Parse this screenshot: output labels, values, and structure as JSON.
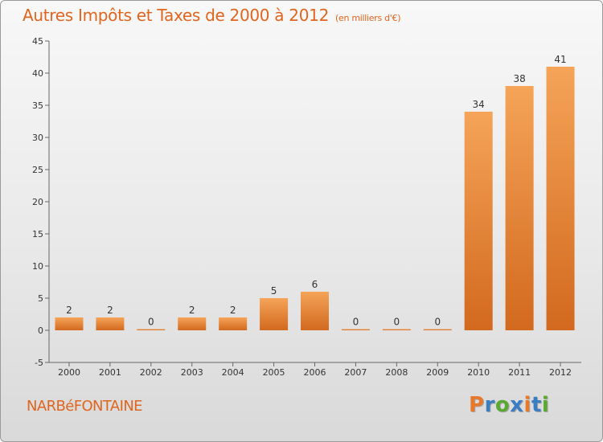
{
  "header": {
    "title": "Autres Impôts et Taxes de 2000 à 2012",
    "subtitle": "(en milliers d'€)"
  },
  "footer": {
    "commune": "NARBéFONTAINE",
    "logo": {
      "letters": [
        "P",
        "r",
        "o",
        "x",
        "i",
        "t",
        "i"
      ],
      "colors": [
        "#e8782a",
        "#3a7dc2",
        "#5aaa32",
        "#3a7dc2",
        "#e8782a",
        "#3a7dc2",
        "#5aaa32"
      ]
    }
  },
  "chart_data": {
    "type": "bar",
    "categories": [
      "2000",
      "2001",
      "2002",
      "2003",
      "2004",
      "2005",
      "2006",
      "2007",
      "2008",
      "2009",
      "2010",
      "2011",
      "2012"
    ],
    "values": [
      2,
      2,
      0,
      2,
      2,
      5,
      6,
      0,
      0,
      0,
      34,
      38,
      41
    ],
    "ylim": [
      -5,
      45
    ],
    "yticks": [
      -5,
      0,
      5,
      10,
      15,
      20,
      25,
      30,
      35,
      40,
      45
    ],
    "grid": false,
    "colors": {
      "bar_light": "#f5a458",
      "bar_dark": "#d2691e",
      "axis": "#666666"
    }
  }
}
